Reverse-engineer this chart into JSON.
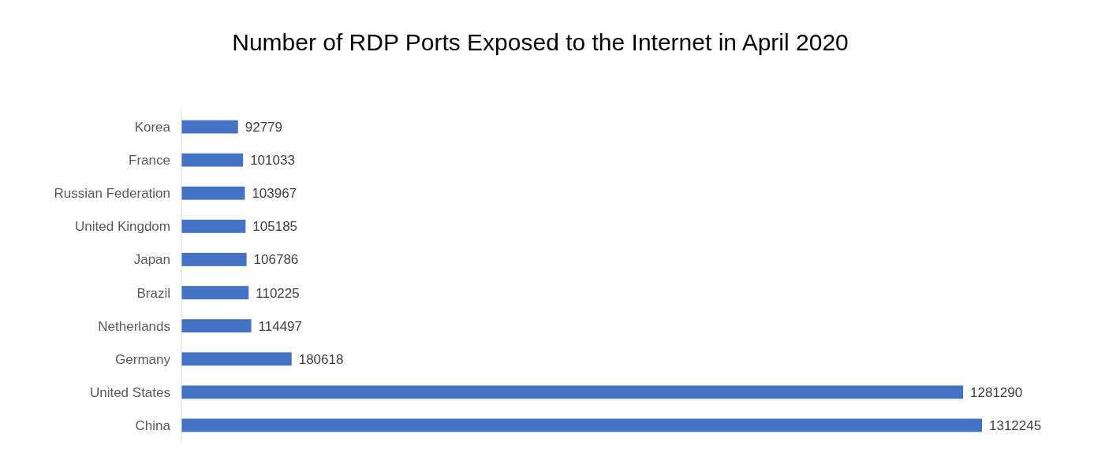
{
  "chart_data": {
    "type": "bar",
    "orientation": "horizontal",
    "title": "Number of RDP Ports Exposed to the Internet in April 2020",
    "categories": [
      "Korea",
      "France",
      "Russian Federation",
      "United Kingdom",
      "Japan",
      "Brazil",
      "Netherlands",
      "Germany",
      "United States",
      "China"
    ],
    "values": [
      92779,
      101033,
      103967,
      105185,
      106786,
      110225,
      114497,
      180618,
      1281290,
      1312245
    ],
    "color": "#4472c4",
    "data_labels": true,
    "tick_labels": "y"
  }
}
